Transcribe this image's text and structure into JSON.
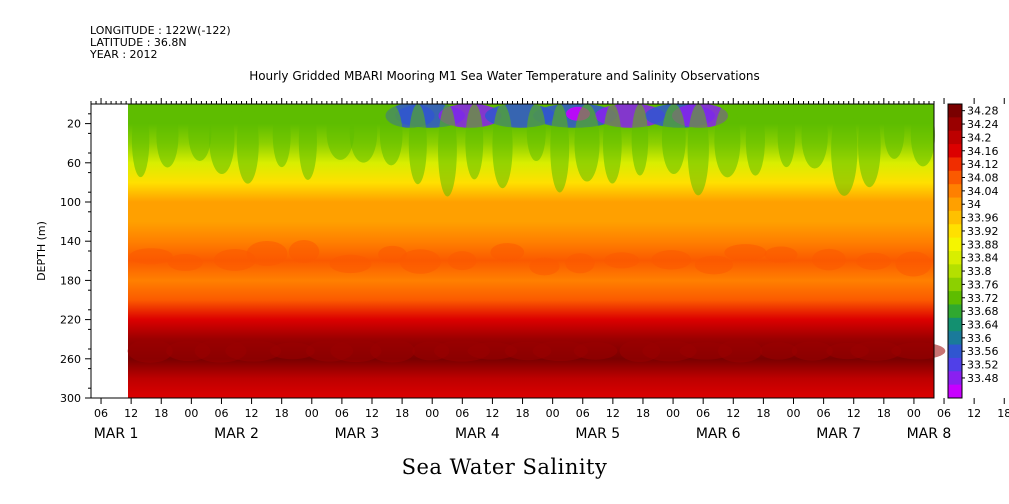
{
  "header": {
    "longitude": "LONGITUDE : 122W(-122)",
    "latitude": "LATITUDE : 36.8N",
    "year": "YEAR : 2012"
  },
  "title": "Hourly Gridded MBARI Mooring M1 Sea Water Temperature and Salinity Observations",
  "bottom_title": "Sea Water Salinity",
  "chart_data": {
    "type": "heatmap",
    "ylabel": "DEPTH (m)",
    "y_reversed": true,
    "ylim": [
      0,
      300
    ],
    "y_ticks": [
      20,
      60,
      100,
      140,
      180,
      220,
      260,
      300
    ],
    "x_hour_ticks": [
      "06",
      "12",
      "18",
      "00",
      "06",
      "12",
      "18",
      "00",
      "06",
      "12",
      "18",
      "00",
      "06",
      "12",
      "18",
      "00",
      "06",
      "12",
      "18",
      "00",
      "06",
      "12",
      "18",
      "00",
      "06",
      "12",
      "18",
      "00",
      "06",
      "12",
      "18",
      "00"
    ],
    "x_day_labels": [
      {
        "text": "MAR  1",
        "hour": 9
      },
      {
        "text": "MAR  2",
        "hour": 33
      },
      {
        "text": "MAR  3",
        "hour": 57
      },
      {
        "text": "MAR  4",
        "hour": 81
      },
      {
        "text": "MAR  5",
        "hour": 105
      },
      {
        "text": "MAR  6",
        "hour": 129
      },
      {
        "text": "MAR  7",
        "hour": 153
      },
      {
        "text": "MAR  8",
        "hour": 171
      }
    ],
    "data_start_hour": 12,
    "colorbar": {
      "labels": [
        "34.28",
        "34.24",
        "34.2",
        "34.16",
        "34.12",
        "34.08",
        "34.04",
        "34",
        "33.96",
        "33.92",
        "33.88",
        "33.84",
        "33.8",
        "33.76",
        "33.72",
        "33.68",
        "33.64",
        "33.6",
        "33.56",
        "33.52",
        "33.48"
      ],
      "colors": [
        "#7a0000",
        "#9a0000",
        "#bd0000",
        "#dc0000",
        "#f02d00",
        "#fb5a00",
        "#ff8000",
        "#ffa000",
        "#ffc000",
        "#ffe000",
        "#f5f500",
        "#d8ee00",
        "#b4e000",
        "#8cd000",
        "#5ebd00",
        "#30a830",
        "#139070",
        "#1a7a9a",
        "#3056d0",
        "#5040e8",
        "#8a20f0",
        "#c800ff"
      ]
    },
    "salinity_profile": [
      {
        "depth": 5,
        "value": 33.7
      },
      {
        "depth": 20,
        "value": 33.7
      },
      {
        "depth": 40,
        "value": 33.75
      },
      {
        "depth": 60,
        "value": 33.82
      },
      {
        "depth": 80,
        "value": 33.9
      },
      {
        "depth": 100,
        "value": 33.97
      },
      {
        "depth": 120,
        "value": 34.0
      },
      {
        "depth": 140,
        "value": 34.04
      },
      {
        "depth": 160,
        "value": 34.06
      },
      {
        "depth": 180,
        "value": 34.04
      },
      {
        "depth": 200,
        "value": 34.08
      },
      {
        "depth": 220,
        "value": 34.16
      },
      {
        "depth": 240,
        "value": 34.22
      },
      {
        "depth": 260,
        "value": 34.25
      },
      {
        "depth": 280,
        "value": 34.18
      },
      {
        "depth": 300,
        "value": 34.16
      }
    ],
    "grid": false
  }
}
